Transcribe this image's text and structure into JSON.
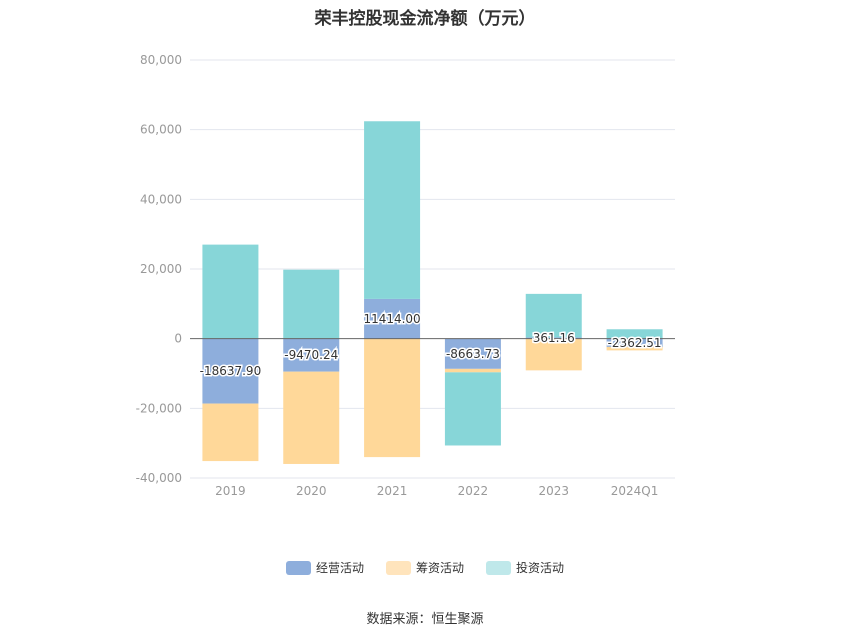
{
  "chart_data": {
    "type": "bar",
    "stacked": true,
    "title": "荣丰控股现金流净额（万元）",
    "categories": [
      "2019",
      "2020",
      "2021",
      "2022",
      "2023",
      "2024Q1"
    ],
    "ylim": [
      -40000,
      80000
    ],
    "yticks": [
      -40000,
      -20000,
      0,
      20000,
      40000,
      60000,
      80000
    ],
    "ytick_labels": [
      "-40,000",
      "-20,000",
      "0",
      "20,000",
      "40,000",
      "60,000",
      "80,000"
    ],
    "grid": true,
    "legend_position": "bottom",
    "series": [
      {
        "name": "经营活动",
        "color": "#8eaedc",
        "values": [
          -18637.9,
          -9470.24,
          11414.0,
          -8663.73,
          361.16,
          -2362.51
        ],
        "labels": [
          "-18637.90",
          "-9470.24",
          "11414.00",
          "-8663.73",
          "361.16",
          "-2362.51"
        ]
      },
      {
        "name": "筹资活动",
        "color": "#ffd899",
        "values": [
          -16500,
          -26500,
          -34000,
          -1000,
          -9100,
          -1000
        ]
      },
      {
        "name": "投资活动",
        "color": "#87d6d8",
        "values": [
          27000,
          19800,
          51000,
          -21000,
          12500,
          2700
        ]
      }
    ],
    "legend_colors": [
      "#8eaedc",
      "#ffe4bc",
      "#bfe8ea"
    ]
  },
  "source": "数据来源：恒生聚源"
}
